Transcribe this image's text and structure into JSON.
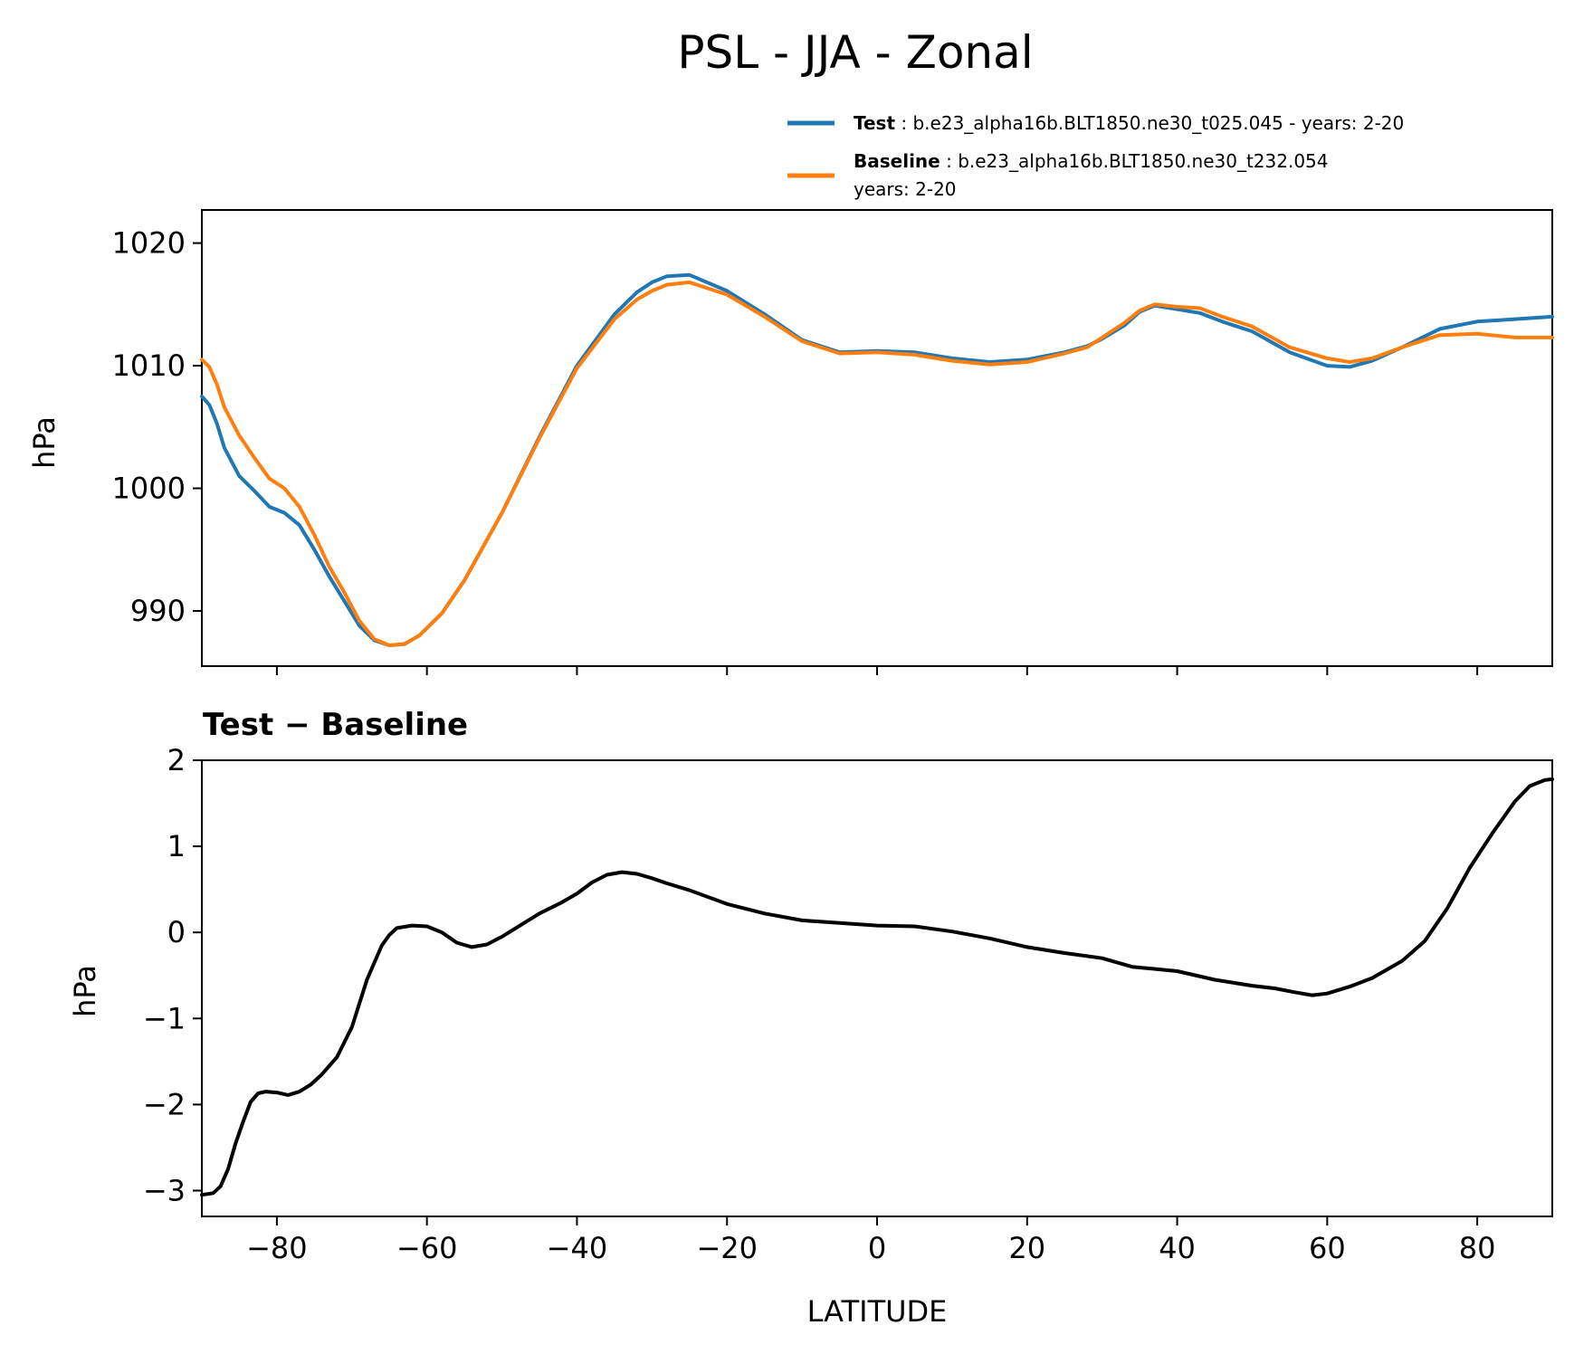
{
  "title": "PSL - JJA - Zonal",
  "legend": {
    "test_label": "Test",
    "test_text": "b.e23_alpha16b.BLT1850.ne30_t025.045 - years: 2-20",
    "baseline_label": "Baseline",
    "baseline_text": "b.e23_alpha16b.BLT1850.ne30_t232.054",
    "baseline_text2": "years: 2-20"
  },
  "colors": {
    "test": "#1f77b4",
    "baseline": "#ff7f0e",
    "difference": "#000000"
  },
  "chart_data": [
    {
      "type": "line",
      "title": "",
      "xlabel": "",
      "ylabel": "hPa",
      "xlim": [
        -90,
        90
      ],
      "ylim": [
        985.5,
        1022.7
      ],
      "yticks": [
        990,
        1000,
        1010,
        1020
      ],
      "xticks": [
        -80,
        -60,
        -40,
        -20,
        0,
        20,
        40,
        60,
        80
      ],
      "show_xtick_labels": false,
      "grid": false,
      "legend_position": "above-right",
      "series": [
        {
          "name": "Test",
          "color": "#1f77b4",
          "x": [
            -90,
            -89,
            -88,
            -87,
            -85,
            -83,
            -81,
            -79,
            -77,
            -75,
            -73,
            -71,
            -69,
            -67,
            -65,
            -63,
            -61,
            -58,
            -55,
            -50,
            -45,
            -40,
            -35,
            -32,
            -30,
            -28,
            -25,
            -20,
            -15,
            -10,
            -5,
            0,
            5,
            10,
            15,
            20,
            25,
            28,
            30,
            33,
            35,
            37,
            40,
            43,
            46,
            50,
            55,
            60,
            63,
            66,
            70,
            75,
            80,
            85,
            90
          ],
          "values": [
            1007.5,
            1006.8,
            1005.3,
            1003.3,
            1001.0,
            999.8,
            998.5,
            998.0,
            997.0,
            995.0,
            992.8,
            990.8,
            988.8,
            987.6,
            987.2,
            987.3,
            988.0,
            989.8,
            992.5,
            998.0,
            1004.2,
            1010.0,
            1014.2,
            1016.0,
            1016.8,
            1017.3,
            1017.4,
            1016.1,
            1014.2,
            1012.1,
            1011.1,
            1011.2,
            1011.1,
            1010.6,
            1010.3,
            1010.5,
            1011.1,
            1011.6,
            1012.2,
            1013.3,
            1014.4,
            1014.9,
            1014.6,
            1014.3,
            1013.6,
            1012.8,
            1011.1,
            1010.0,
            1009.9,
            1010.4,
            1011.5,
            1013.0,
            1013.6,
            1013.8,
            1014.0
          ]
        },
        {
          "name": "Baseline",
          "color": "#ff7f0e",
          "x": [
            -90,
            -89,
            -88,
            -87,
            -85,
            -83,
            -81,
            -79,
            -77,
            -75,
            -73,
            -71,
            -69,
            -67,
            -65,
            -63,
            -61,
            -58,
            -55,
            -50,
            -45,
            -40,
            -35,
            -32,
            -30,
            -28,
            -25,
            -20,
            -15,
            -10,
            -5,
            0,
            5,
            10,
            15,
            20,
            25,
            28,
            30,
            33,
            35,
            37,
            40,
            43,
            46,
            50,
            55,
            60,
            63,
            66,
            70,
            75,
            80,
            85,
            90
          ],
          "values": [
            1010.5,
            1009.9,
            1008.5,
            1006.6,
            1004.3,
            1002.5,
            1000.8,
            1000.0,
            998.5,
            996.2,
            993.6,
            991.5,
            989.2,
            987.7,
            987.2,
            987.3,
            988.0,
            989.8,
            992.5,
            998.0,
            1004.1,
            1009.8,
            1013.8,
            1015.4,
            1016.1,
            1016.6,
            1016.8,
            1015.8,
            1014.0,
            1012.0,
            1011.0,
            1011.1,
            1010.9,
            1010.4,
            1010.1,
            1010.3,
            1011.0,
            1011.5,
            1012.3,
            1013.5,
            1014.5,
            1015.0,
            1014.8,
            1014.7,
            1014.0,
            1013.2,
            1011.5,
            1010.6,
            1010.3,
            1010.6,
            1011.5,
            1012.5,
            1012.6,
            1012.3,
            1012.3
          ]
        }
      ]
    },
    {
      "type": "line",
      "title": "Test − Baseline",
      "xlabel": "LATITUDE",
      "ylabel": "hPa",
      "xlim": [
        -90,
        90
      ],
      "ylim": [
        -3.3,
        2.0
      ],
      "yticks": [
        -3,
        -2,
        -1,
        0,
        1,
        2
      ],
      "ytick_labels": [
        "−3",
        "−2",
        "−1",
        "0",
        "1",
        "2"
      ],
      "xticks": [
        -80,
        -60,
        -40,
        -20,
        0,
        20,
        40,
        60,
        80
      ],
      "xtick_labels": [
        "−80",
        "−60",
        "−40",
        "−20",
        "0",
        "20",
        "40",
        "60",
        "80"
      ],
      "grid": false,
      "series": [
        {
          "name": "Test − Baseline",
          "color": "#000000",
          "x": [
            -90,
            -88.5,
            -87.5,
            -86.5,
            -85.5,
            -84.5,
            -83.5,
            -82.5,
            -81.5,
            -80,
            -78.5,
            -77,
            -75.5,
            -74,
            -72,
            -70,
            -68,
            -67,
            -66,
            -65,
            -64,
            -62,
            -60,
            -58,
            -56,
            -54,
            -52,
            -50,
            -45,
            -42,
            -40,
            -38,
            -36,
            -34,
            -32,
            -30,
            -28,
            -25,
            -20,
            -15,
            -10,
            -5,
            0,
            5,
            10,
            15,
            20,
            25,
            30,
            34,
            40,
            45,
            50,
            53,
            56,
            58,
            60,
            63,
            66,
            70,
            73,
            76,
            79,
            82,
            85,
            87,
            89,
            90
          ],
          "values": [
            -3.05,
            -3.03,
            -2.95,
            -2.75,
            -2.45,
            -2.2,
            -1.97,
            -1.87,
            -1.85,
            -1.86,
            -1.89,
            -1.85,
            -1.77,
            -1.65,
            -1.45,
            -1.1,
            -0.55,
            -0.35,
            -0.15,
            -0.03,
            0.05,
            0.08,
            0.07,
            0.0,
            -0.12,
            -0.17,
            -0.14,
            -0.05,
            0.22,
            0.35,
            0.45,
            0.58,
            0.67,
            0.7,
            0.68,
            0.63,
            0.57,
            0.49,
            0.33,
            0.22,
            0.14,
            0.11,
            0.08,
            0.07,
            0.01,
            -0.07,
            -0.17,
            -0.24,
            -0.3,
            -0.4,
            -0.45,
            -0.55,
            -0.62,
            -0.65,
            -0.7,
            -0.73,
            -0.71,
            -0.63,
            -0.53,
            -0.33,
            -0.1,
            0.28,
            0.75,
            1.15,
            1.52,
            1.7,
            1.77,
            1.78
          ]
        }
      ]
    }
  ]
}
